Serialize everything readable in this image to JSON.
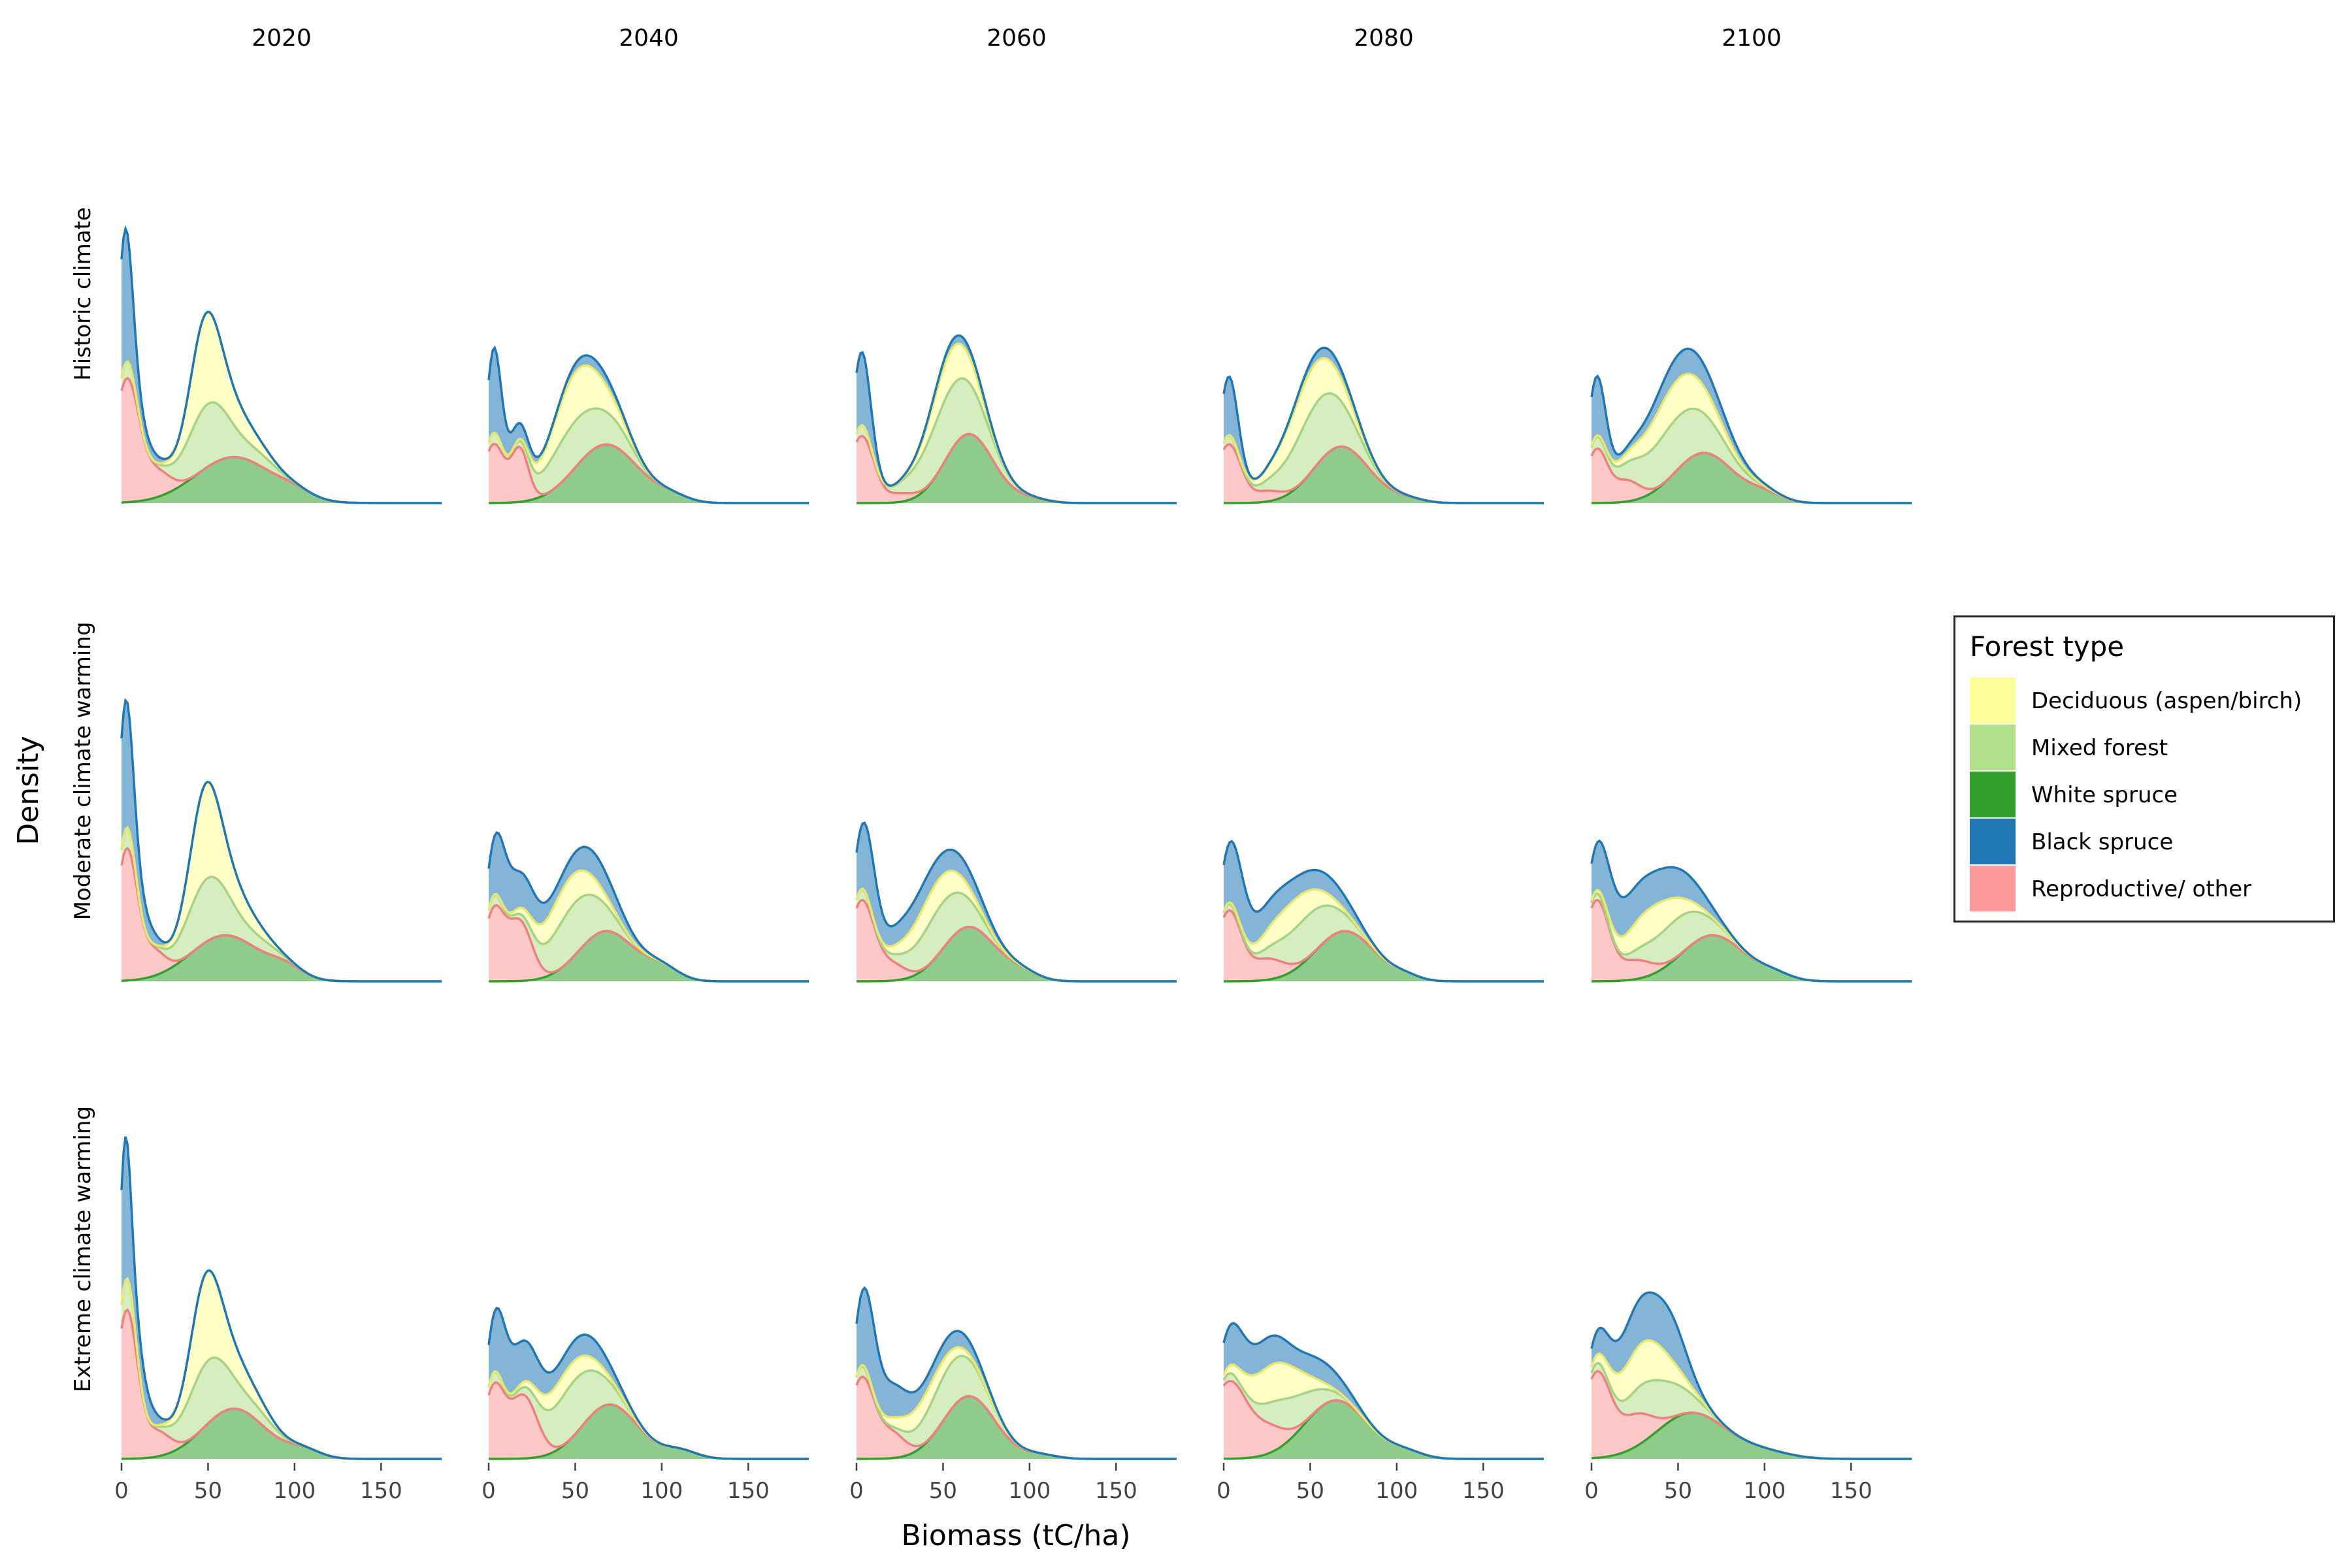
{
  "chart_data": {
    "type": "area",
    "subtype": "stacked density ridgeline facets",
    "xlabel": "Biomass (tC/ha)",
    "ylabel": "Density",
    "xlim": [
      0,
      185
    ],
    "x_ticks": [
      0,
      50,
      100,
      150
    ],
    "columns": [
      "2020",
      "2040",
      "2060",
      "2080",
      "2100"
    ],
    "rows": [
      "Historic climate",
      "Moderate climate warming",
      "Extreme climate warming"
    ],
    "legend": {
      "title": "Forest type",
      "placement": "right",
      "items": [
        {
          "label": "Deciduous (aspen/birch)",
          "key": "deciduous",
          "color": "#ffff99"
        },
        {
          "label": "Mixed forest",
          "key": "mixed",
          "color": "#b2df8a"
        },
        {
          "label": "White spruce",
          "key": "white",
          "color": "#33a02c"
        },
        {
          "label": "Black spruce",
          "key": "black",
          "color": "#1f78b4"
        },
        {
          "label": "Reproductive/ other",
          "key": "repro",
          "color": "#fb9a99"
        }
      ]
    },
    "stack_order_bottom_to_top": [
      "white",
      "repro",
      "mixed",
      "deciduous",
      "black"
    ],
    "component_params": {
      "white": [
        [
          [
            [
              65,
              22,
              0.22
            ],
            [
              100,
              10,
              0.03
            ]
          ],
          [
            [
              68,
              18,
              0.28
            ],
            [
              105,
              10,
              0.03
            ]
          ],
          [
            [
              65,
              14,
              0.33
            ],
            [
              100,
              10,
              0.02
            ]
          ],
          [
            [
              68,
              16,
              0.27
            ],
            [
              105,
              10,
              0.02
            ]
          ],
          [
            [
              65,
              17,
              0.24
            ],
            [
              100,
              10,
              0.04
            ]
          ]
        ],
        [
          [
            [
              60,
              20,
              0.22
            ],
            [
              95,
              10,
              0.05
            ]
          ],
          [
            [
              68,
              16,
              0.24
            ],
            [
              100,
              10,
              0.06
            ]
          ],
          [
            [
              65,
              15,
              0.26
            ],
            [
              95,
              10,
              0.04
            ]
          ],
          [
            [
              70,
              17,
              0.24
            ],
            [
              105,
              8,
              0.02
            ]
          ],
          [
            [
              70,
              18,
              0.22
            ],
            [
              105,
              10,
              0.03
            ]
          ]
        ],
        [
          [
            [
              65,
              18,
              0.24
            ],
            [
              105,
              10,
              0.04
            ]
          ],
          [
            [
              70,
              16,
              0.26
            ],
            [
              110,
              10,
              0.04
            ]
          ],
          [
            [
              65,
              15,
              0.3
            ],
            [
              105,
              10,
              0.02
            ]
          ],
          [
            [
              65,
              18,
              0.28
            ],
            [
              105,
              10,
              0.03
            ]
          ],
          [
            [
              58,
              20,
              0.22
            ],
            [
              100,
              15,
              0.03
            ]
          ]
        ]
      ],
      "repro": [
        [
          [
            [
              3,
              7,
              0.58
            ],
            [
              20,
              8,
              0.12
            ]
          ],
          [
            [
              3,
              6,
              0.28
            ],
            [
              18,
              5,
              0.25
            ]
          ],
          [
            [
              3,
              7,
              0.32
            ],
            [
              25,
              8,
              0.04
            ]
          ],
          [
            [
              3,
              7,
              0.28
            ],
            [
              25,
              8,
              0.05
            ]
          ],
          [
            [
              3,
              6,
              0.25
            ],
            [
              20,
              8,
              0.1
            ]
          ]
        ],
        [
          [
            [
              3,
              6,
              0.62
            ],
            [
              18,
              7,
              0.12
            ]
          ],
          [
            [
              3,
              6,
              0.33
            ],
            [
              18,
              7,
              0.28
            ]
          ],
          [
            [
              3,
              7,
              0.38
            ],
            [
              20,
              8,
              0.08
            ]
          ],
          [
            [
              3,
              7,
              0.33
            ],
            [
              25,
              10,
              0.1
            ]
          ],
          [
            [
              3,
              7,
              0.38
            ],
            [
              25,
              10,
              0.09
            ]
          ]
        ],
        [
          [
            [
              3,
              6,
              0.7
            ],
            [
              20,
              8,
              0.12
            ]
          ],
          [
            [
              3,
              6,
              0.33
            ],
            [
              20,
              8,
              0.3
            ]
          ],
          [
            [
              3,
              7,
              0.38
            ],
            [
              20,
              8,
              0.12
            ]
          ],
          [
            [
              3,
              10,
              0.36
            ],
            [
              25,
              10,
              0.12
            ]
          ],
          [
            [
              3,
              8,
              0.4
            ],
            [
              25,
              10,
              0.15
            ]
          ]
        ]
      ],
      "mixed": [
        [
          [
            [
              3,
              4,
              0.08
            ],
            [
              50,
              12,
              0.3
            ],
            [
              80,
              10,
              0.05
            ]
          ],
          [
            [
              3,
              4,
              0.05
            ],
            [
              50,
              16,
              0.22
            ],
            [
              75,
              10,
              0.05
            ]
          ],
          [
            [
              3,
              4,
              0.05
            ],
            [
              55,
              16,
              0.3
            ]
          ],
          [
            [
              3,
              4,
              0.04
            ],
            [
              55,
              16,
              0.3
            ]
          ],
          [
            [
              3,
              4,
              0.04
            ],
            [
              50,
              20,
              0.25
            ]
          ]
        ],
        [
          [
            [
              3,
              4,
              0.1
            ],
            [
              50,
              12,
              0.3
            ],
            [
              80,
              10,
              0.05
            ]
          ],
          [
            [
              3,
              4,
              0.05
            ],
            [
              50,
              15,
              0.25
            ]
          ],
          [
            [
              3,
              4,
              0.05
            ],
            [
              50,
              15,
              0.22
            ]
          ],
          [
            [
              3,
              4,
              0.03
            ],
            [
              50,
              15,
              0.2
            ]
          ],
          [
            [
              3,
              4,
              0.03
            ],
            [
              50,
              15,
              0.18
            ]
          ]
        ],
        [
          [
            [
              3,
              4,
              0.15
            ],
            [
              50,
              12,
              0.3
            ],
            [
              80,
              10,
              0.05
            ]
          ],
          [
            [
              3,
              4,
              0.05
            ],
            [
              50,
              15,
              0.26
            ]
          ],
          [
            [
              3,
              4,
              0.05
            ],
            [
              55,
              15,
              0.22
            ]
          ],
          [
            [
              3,
              4,
              0.03
            ],
            [
              40,
              15,
              0.15
            ]
          ],
          [
            [
              3,
              4,
              0.03
            ],
            [
              40,
              15,
              0.18
            ]
          ]
        ]
      ],
      "deciduous": [
        [
          [
            [
              48,
              8,
              0.33
            ],
            [
              60,
              15,
              0.15
            ]
          ],
          [
            [
              48,
              12,
              0.2
            ],
            [
              65,
              12,
              0.08
            ]
          ],
          [
            [
              55,
              12,
              0.18
            ]
          ],
          [
            [
              50,
              16,
              0.2
            ]
          ],
          [
            [
              50,
              18,
              0.18
            ]
          ]
        ],
        [
          [
            [
              48,
              8,
              0.35
            ],
            [
              60,
              15,
              0.15
            ]
          ],
          [
            [
              45,
              15,
              0.15
            ]
          ],
          [
            [
              45,
              15,
              0.14
            ]
          ],
          [
            [
              40,
              15,
              0.14
            ]
          ],
          [
            [
              35,
              15,
              0.16
            ]
          ]
        ],
        [
          [
            [
              48,
              8,
              0.32
            ],
            [
              60,
              15,
              0.15
            ]
          ],
          [
            [
              45,
              15,
              0.1
            ]
          ],
          [
            [
              40,
              15,
              0.1
            ]
          ],
          [
            [
              30,
              15,
              0.18
            ]
          ],
          [
            [
              30,
              15,
              0.2
            ]
          ]
        ]
      ],
      "black": [
        [
          [
            [
              2,
              4,
              0.55
            ],
            [
              6,
              10,
              0.1
            ]
          ],
          [
            [
              3,
              4,
              0.38
            ],
            [
              15,
              8,
              0.08
            ],
            [
              60,
              15,
              0.05
            ]
          ],
          [
            [
              3,
              5,
              0.35
            ],
            [
              60,
              15,
              0.04
            ]
          ],
          [
            [
              3,
              5,
              0.28
            ],
            [
              60,
              15,
              0.05
            ]
          ],
          [
            [
              3,
              5,
              0.28
            ],
            [
              55,
              20,
              0.12
            ]
          ]
        ],
        [
          [
            [
              2,
              4,
              0.5
            ],
            [
              8,
              8,
              0.15
            ]
          ],
          [
            [
              5,
              6,
              0.25
            ],
            [
              20,
              10,
              0.15
            ],
            [
              60,
              15,
              0.12
            ]
          ],
          [
            [
              5,
              6,
              0.3
            ],
            [
              30,
              15,
              0.1
            ],
            [
              60,
              15,
              0.08
            ]
          ],
          [
            [
              5,
              7,
              0.25
            ],
            [
              25,
              15,
              0.12
            ],
            [
              60,
              15,
              0.08
            ]
          ],
          [
            [
              5,
              7,
              0.15
            ],
            [
              20,
              15,
              0.15
            ],
            [
              50,
              15,
              0.12
            ]
          ]
        ],
        [
          [
            [
              2,
              3,
              0.55
            ],
            [
              8,
              8,
              0.18
            ]
          ],
          [
            [
              5,
              6,
              0.25
            ],
            [
              20,
              10,
              0.18
            ],
            [
              55,
              15,
              0.1
            ]
          ],
          [
            [
              5,
              6,
              0.33
            ],
            [
              20,
              10,
              0.15
            ],
            [
              55,
              15,
              0.08
            ]
          ],
          [
            [
              5,
              8,
              0.18
            ],
            [
              25,
              10,
              0.12
            ],
            [
              55,
              15,
              0.1
            ]
          ],
          [
            [
              5,
              8,
              0.1
            ],
            [
              25,
              10,
              0.18
            ],
            [
              45,
              10,
              0.2
            ]
          ]
        ]
      ]
    }
  }
}
